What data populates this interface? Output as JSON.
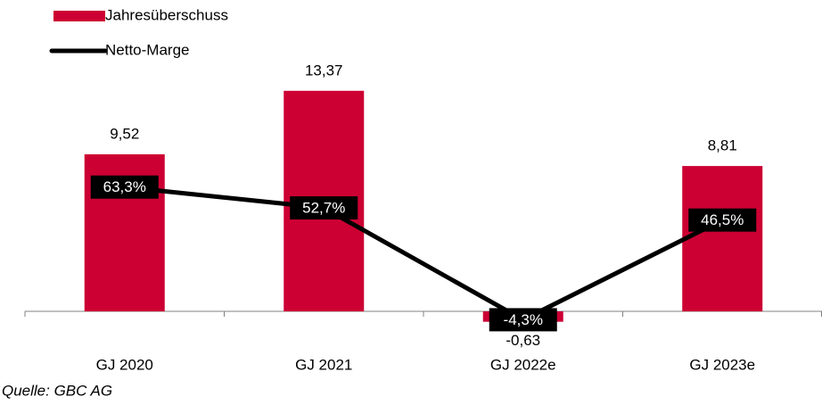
{
  "chart_data": {
    "type": "bar",
    "categories": [
      "GJ 2020",
      "GJ 2021",
      "GJ 2022e",
      "GJ 2023e"
    ],
    "series": [
      {
        "name": "Jahresüberschuss",
        "type": "bar",
        "color": "#cc0033",
        "values": [
          9.52,
          13.37,
          -0.63,
          8.81
        ],
        "value_labels": [
          "9,52",
          "13,37",
          "-0,63",
          "8,81"
        ]
      },
      {
        "name": "Netto-Marge",
        "type": "line",
        "axis": "y2",
        "color": "#000000",
        "values": [
          63.3,
          52.7,
          -4.3,
          46.5
        ],
        "value_labels": [
          "63,3%",
          "52,7%",
          "-4,3%",
          "46,5%"
        ]
      }
    ],
    "ylim": [
      -1.15,
      17.5
    ],
    "y2lim": [
      -9.7,
      147.1
    ],
    "source": "Quelle: GBC AG"
  }
}
